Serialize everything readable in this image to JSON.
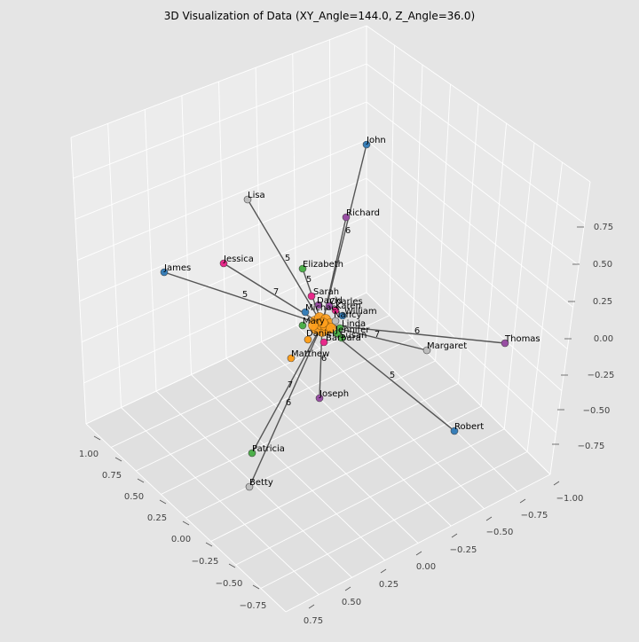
{
  "title": "3D Visualization of Data (XY_Angle=144.0, Z_Angle=36.0)",
  "chart_data": {
    "type": "scatter",
    "projection": "3d",
    "title": "3D Visualization of Data (XY_Angle=144.0, Z_Angle=36.0)",
    "view": {
      "azimuth": 144.0,
      "elevation": 36.0
    },
    "grid": true,
    "legend": "none",
    "axes": {
      "x": {
        "ticks": [
          "1.00",
          "0.75",
          "0.50",
          "0.25",
          "0.00",
          "−0.25",
          "−0.50",
          "−0.75"
        ]
      },
      "y": {
        "ticks": [
          "−1.00",
          "−0.75",
          "−0.50",
          "−0.25",
          "0.00",
          "0.25",
          "0.50",
          "0.75"
        ]
      },
      "z": {
        "ticks": [
          "−0.75",
          "−0.50",
          "−0.25",
          "0.00",
          "0.25",
          "0.50",
          "0.75"
        ]
      }
    },
    "colors": {
      "blue": "#377eb8",
      "purple": "#984ea3",
      "green": "#4daf4a",
      "pink": "#e7298a",
      "gray": "#bdbdbd",
      "orange": "#ff9f1c",
      "edge": "#555555"
    },
    "center_cluster": {
      "label_count": 0,
      "color": "#ff9f1c"
    },
    "points": [
      {
        "label": "John",
        "color": "#377eb8"
      },
      {
        "label": "Richard",
        "color": "#984ea3"
      },
      {
        "label": "Lisa",
        "color": "#bdbdbd"
      },
      {
        "label": "Jessica",
        "color": "#e7298a"
      },
      {
        "label": "James",
        "color": "#377eb8"
      },
      {
        "label": "Elizabeth",
        "color": "#4daf4a"
      },
      {
        "label": "Sarah",
        "color": "#e7298a"
      },
      {
        "label": "David",
        "color": "#984ea3"
      },
      {
        "label": "Charles",
        "color": "#984ea3"
      },
      {
        "label": "Karen",
        "color": "#e7298a"
      },
      {
        "label": "Michael",
        "color": "#377eb8"
      },
      {
        "label": "William",
        "color": "#377eb8"
      },
      {
        "label": "Nancy",
        "color": "#bdbdbd"
      },
      {
        "label": "Mary",
        "color": "#4daf4a"
      },
      {
        "label": "Linda",
        "color": "#4daf4a"
      },
      {
        "label": "Jennifer",
        "color": "#4daf4a"
      },
      {
        "label": "Susan",
        "color": "#4daf4a"
      },
      {
        "label": "Daniel",
        "color": "#ff9f1c"
      },
      {
        "label": "Barbara",
        "color": "#e7298a"
      },
      {
        "label": "Thomas",
        "color": "#984ea3"
      },
      {
        "label": "Margaret",
        "color": "#bdbdbd"
      },
      {
        "label": "Matthew",
        "color": "#ff9f1c"
      },
      {
        "label": "Joseph",
        "color": "#984ea3"
      },
      {
        "label": "Robert",
        "color": "#377eb8"
      },
      {
        "label": "Patricia",
        "color": "#4daf4a"
      },
      {
        "label": "Betty",
        "color": "#bdbdbd"
      }
    ],
    "edges": [
      {
        "to": "John",
        "weight": null
      },
      {
        "to": "Richard",
        "weight": 6
      },
      {
        "to": "Lisa",
        "weight": 5
      },
      {
        "to": "Jessica",
        "weight": 7
      },
      {
        "to": "James",
        "weight": 5
      },
      {
        "to": "Elizabeth",
        "weight": 5
      },
      {
        "to": "Thomas",
        "weight": 6
      },
      {
        "to": "Margaret",
        "weight": 7
      },
      {
        "to": "Robert",
        "weight": 5
      },
      {
        "to": "Joseph",
        "weight": 6
      },
      {
        "to": "Patricia",
        "weight": 7
      },
      {
        "to": "Betty",
        "weight": 6
      }
    ]
  }
}
